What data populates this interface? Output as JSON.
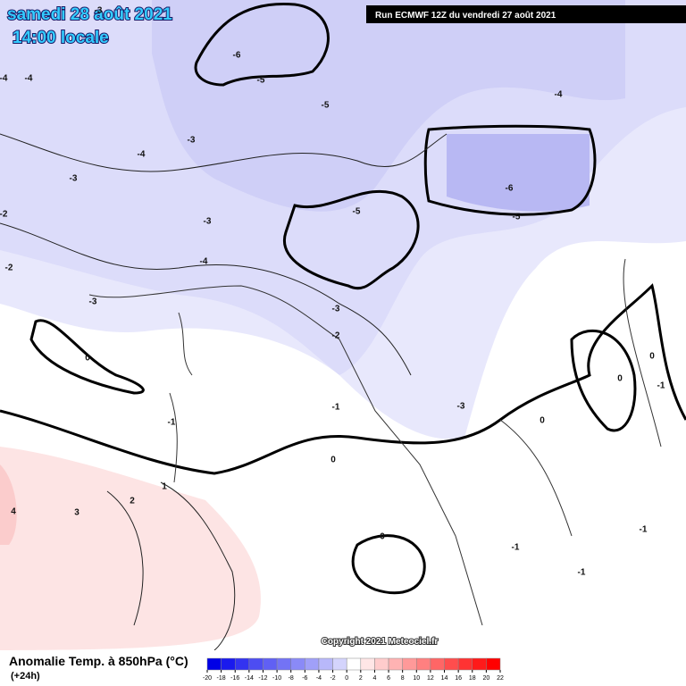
{
  "header": {
    "date": "samedi 28 août 2021",
    "time": "14:00 locale",
    "run": "Run ECMWF 12Z du vendredi 27 août 2021"
  },
  "footer": {
    "title": "Anomalie Temp. à 850hPa (°C)",
    "lead": "(+24h)",
    "copyright": "Copyright 2021 Meteociel.fr"
  },
  "legend": {
    "ticks": [
      -20,
      -18,
      -16,
      -14,
      -12,
      -10,
      -8,
      -6,
      -4,
      -2,
      0,
      2,
      4,
      6,
      8,
      10,
      12,
      14,
      16,
      18,
      20,
      22
    ],
    "colors": [
      "#0000e6",
      "#1a1aee",
      "#3333f0",
      "#4d4df2",
      "#6060f4",
      "#7373f5",
      "#8a8af7",
      "#a0a0f8",
      "#b8b8fa",
      "#d4d4fc",
      "#ffffff",
      "#ffe6e6",
      "#ffcccc",
      "#ffb3b3",
      "#ff9999",
      "#ff8080",
      "#ff6666",
      "#ff4d4d",
      "#ff3333",
      "#ff1a1a",
      "#ff0000"
    ]
  },
  "contour_labels": [
    "-6",
    "-5",
    "-4",
    "-4",
    "-3",
    "-5",
    "-3",
    "-4",
    "-3",
    "-2",
    "-3",
    "-4",
    "-2",
    "-3",
    "-5",
    "-6",
    "-5",
    "-4",
    "-3",
    "-2",
    "0",
    "-1",
    "-1",
    "-3",
    "0",
    "0",
    "0",
    "-1",
    "0",
    "1",
    "2",
    "3",
    "4",
    "0",
    "-1",
    "-1",
    "-1"
  ]
}
